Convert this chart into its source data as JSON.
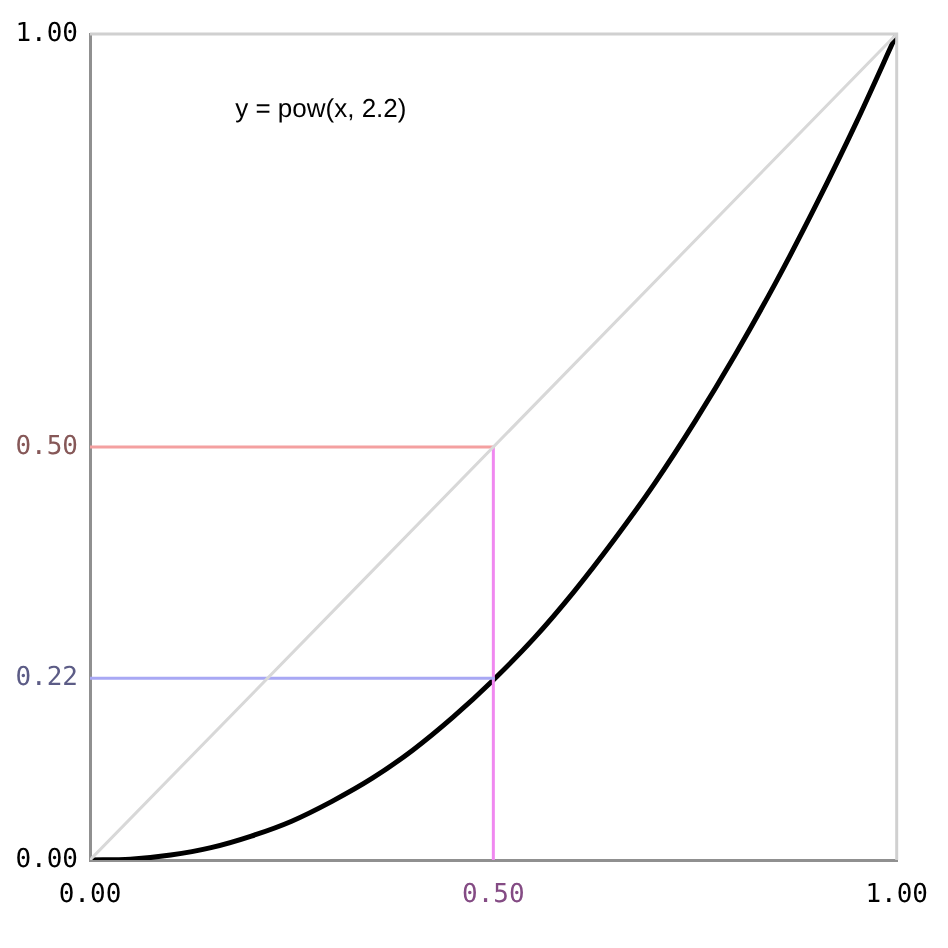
{
  "chart_data": {
    "type": "line",
    "annotations": [
      "y = pow(x, 2.2)"
    ],
    "xlim": [
      0,
      1
    ],
    "ylim": [
      0,
      1
    ],
    "xticks": [
      {
        "value": 0,
        "label": "0.00"
      },
      {
        "value": 0.5,
        "label": "0.50"
      },
      {
        "value": 1,
        "label": "1.00"
      }
    ],
    "yticks": [
      {
        "value": 0,
        "label": "0.00"
      },
      {
        "value": 0.22,
        "label": "0.22"
      },
      {
        "value": 0.5,
        "label": "0.50"
      },
      {
        "value": 1,
        "label": "1.00"
      }
    ],
    "grid": false,
    "legend": false,
    "marker": "none",
    "line_style": "solid",
    "series": [
      {
        "color": "#d8d8d8",
        "x": [
          0,
          1
        ],
        "values": [
          0,
          1
        ]
      },
      {
        "color": "#f4a0a0",
        "x": [
          0,
          0.5
        ],
        "values": [
          0.5,
          0.5
        ]
      },
      {
        "color": "#a8a8f4",
        "x": [
          0,
          0.5
        ],
        "values": [
          0.22,
          0.22
        ]
      },
      {
        "color": "#f088f0",
        "x": [
          0.5,
          0.5
        ],
        "values": [
          0,
          0.5
        ]
      },
      {
        "color": "#000000",
        "x": [
          0,
          0.05,
          0.1,
          0.15,
          0.2,
          0.25,
          0.3,
          0.35,
          0.4,
          0.45,
          0.5,
          0.55,
          0.6,
          0.65,
          0.7,
          0.75,
          0.8,
          0.85,
          0.9,
          0.95,
          1
        ],
        "values": [
          0,
          0.001,
          0.006,
          0.015,
          0.029,
          0.047,
          0.071,
          0.099,
          0.133,
          0.173,
          0.218,
          0.268,
          0.325,
          0.388,
          0.456,
          0.531,
          0.612,
          0.699,
          0.793,
          0.893,
          1
        ]
      }
    ]
  }
}
